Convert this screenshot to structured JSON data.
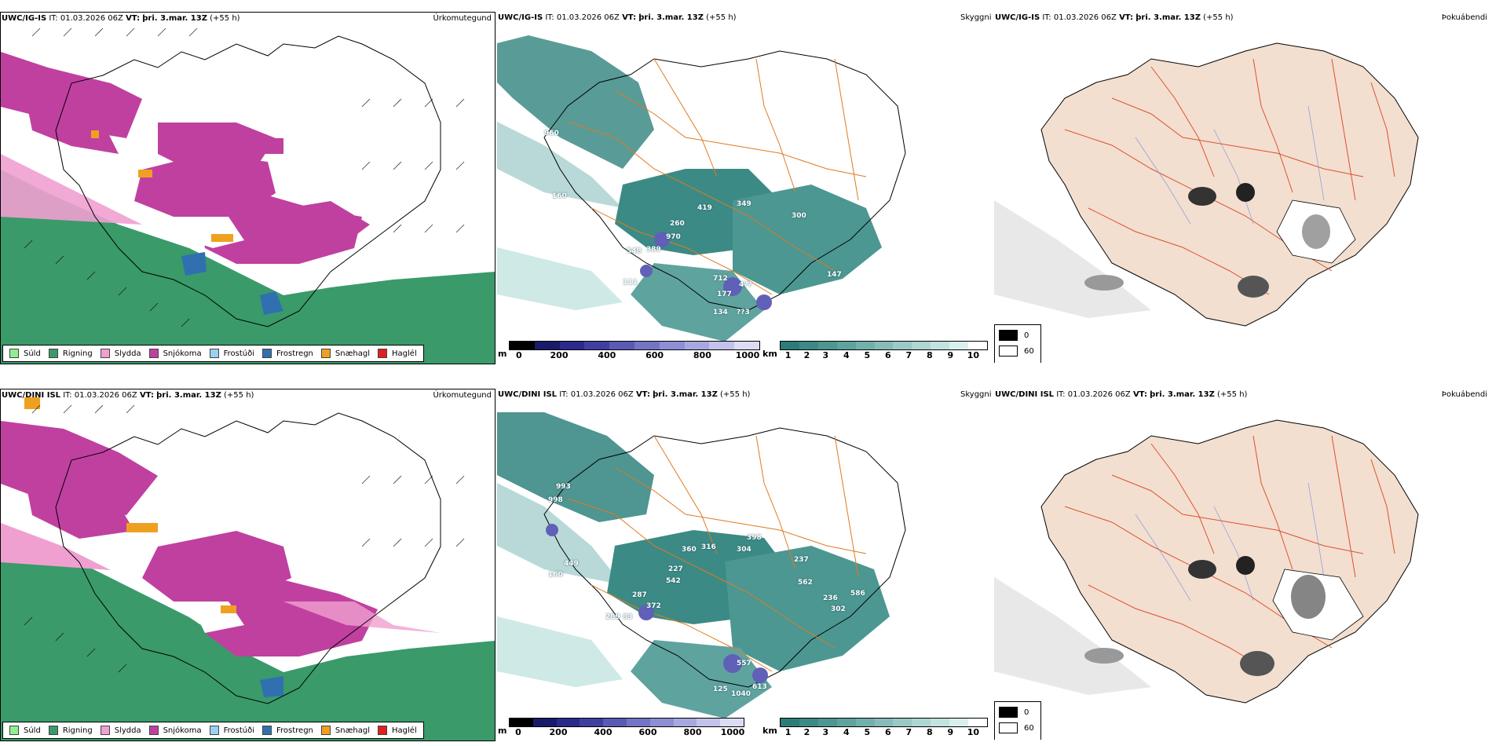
{
  "rows": [
    {
      "model": "UWC/IG-IS",
      "it": "IT: 01.03.2026 06Z",
      "vt_label": "VT:",
      "vt": "þri. 3.mar. 13Z",
      "lead": "(+55 h)",
      "precip_title": "Úrkomutegund",
      "cloud_title": "Skyggni",
      "fog_title": "Þokuábendi",
      "labels": [
        "960",
        "160",
        "419",
        "349",
        "260",
        "970",
        "300",
        "548",
        "389",
        "111",
        "712",
        "177",
        "4??",
        "134",
        "??3",
        "147"
      ]
    },
    {
      "model": "UWC/DINI ISL",
      "it": "IT: 01.03.2026 06Z",
      "vt_label": "VT:",
      "vt": "þri. 3.mar. 13Z",
      "lead": "(+55 h)",
      "precip_title": "Úrkomutegund",
      "cloud_title": "Skyggni",
      "fog_title": "Þokuábendi",
      "labels": [
        "993",
        "998",
        "449",
        "160",
        "360",
        "316",
        "398",
        "304",
        "227",
        "542",
        "237",
        "562",
        "287",
        "372",
        "289",
        "83",
        "236",
        "586",
        "302",
        "125",
        "557",
        "1040",
        "613"
      ]
    }
  ],
  "precip_legend": [
    {
      "label": "Súld",
      "color": "#90ee90"
    },
    {
      "label": "Rigning",
      "color": "#3a9a6a"
    },
    {
      "label": "Slydda",
      "color": "#f0a0d0"
    },
    {
      "label": "Snjókoma",
      "color": "#c040a0"
    },
    {
      "label": "Frostúði",
      "color": "#9ad0f0"
    },
    {
      "label": "Frostregn",
      "color": "#3070b0"
    },
    {
      "label": "Snæhagl",
      "color": "#f0a020"
    },
    {
      "label": "Haglél",
      "color": "#e02020"
    }
  ],
  "cloud_base_bar": {
    "unit": "m",
    "ticks": [
      "0",
      "200",
      "400",
      "600",
      "800",
      "1000"
    ],
    "colors": [
      "#000000",
      "#1a1a6a",
      "#2a2a8a",
      "#3f3fa0",
      "#5a5ab5",
      "#7474c5",
      "#8e8ed5",
      "#a8a8e0",
      "#c2c2ea",
      "#dcdcf5"
    ]
  },
  "vis_bar": {
    "unit": "km",
    "ticks": [
      "1",
      "2",
      "3",
      "4",
      "5",
      "6",
      "7",
      "8",
      "9",
      "10"
    ],
    "colors": [
      "#2c7d78",
      "#3c8a85",
      "#4c9792",
      "#5fa39f",
      "#72b0ac",
      "#86bcb9",
      "#9ac9c6",
      "#aed6d3",
      "#c2e3e0",
      "#d8efed",
      "#ffffff"
    ]
  },
  "fog_legend": [
    {
      "label": "0",
      "color": "#000000"
    },
    {
      "label": "60",
      "color": "#ffffff"
    }
  ]
}
